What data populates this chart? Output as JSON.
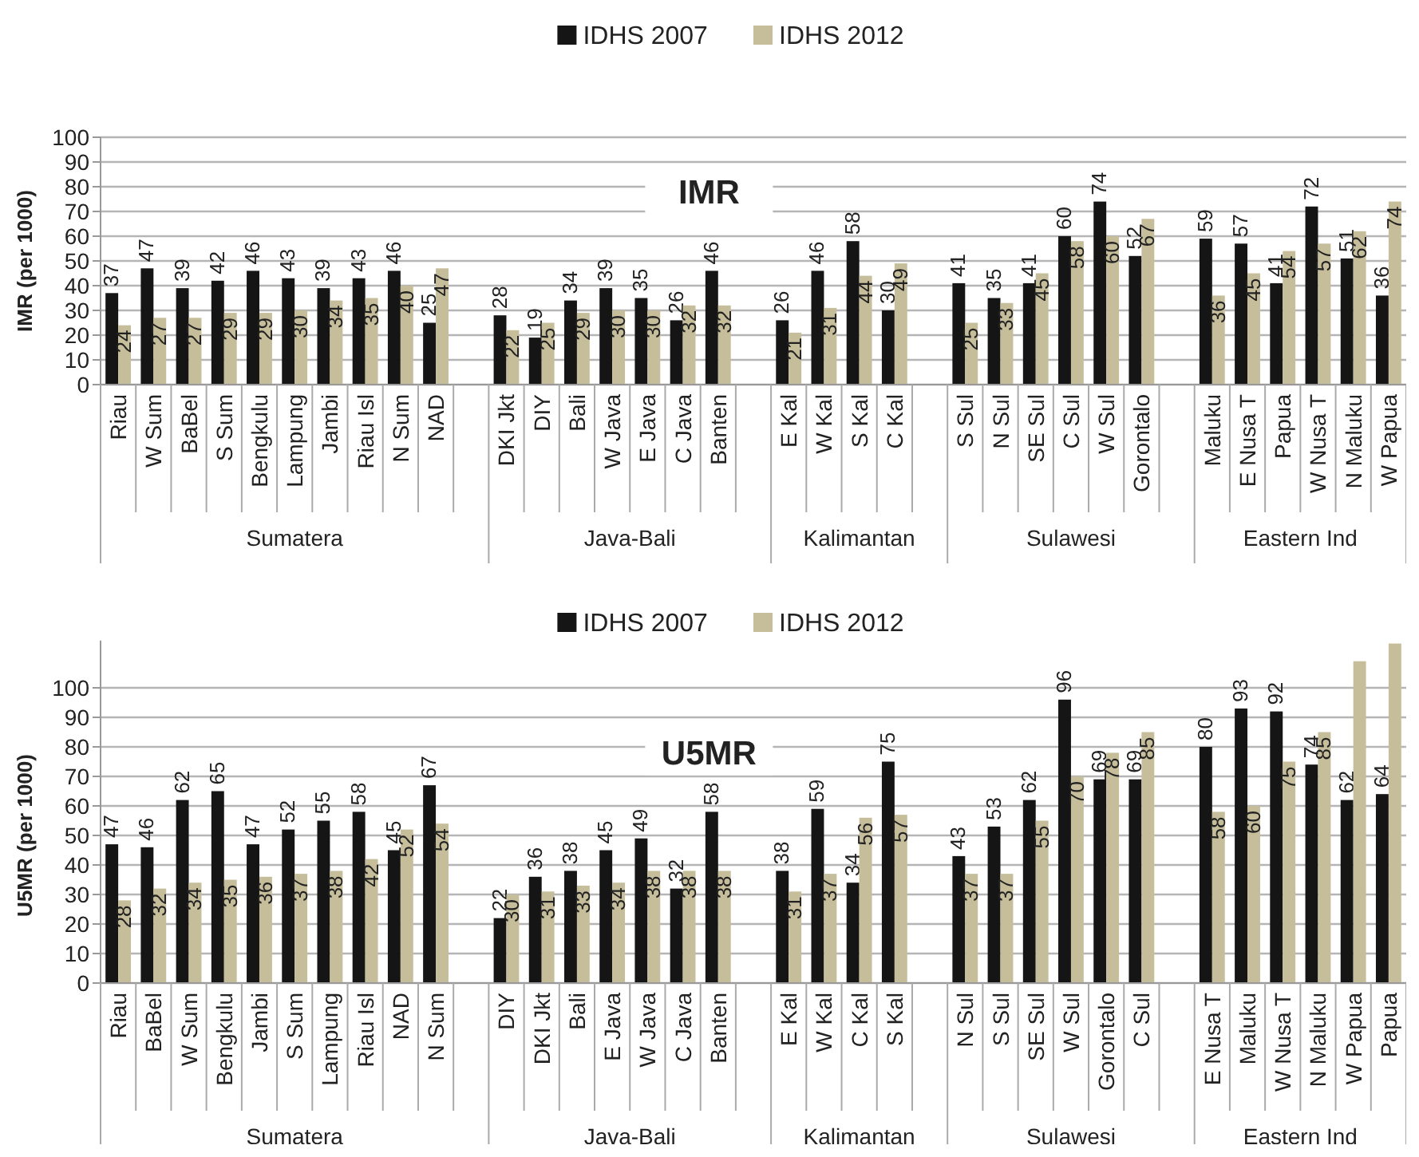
{
  "chart_data": [
    {
      "type": "bar",
      "title": "IMR",
      "ylabel": "IMR (per 1000)",
      "legend": "top",
      "grid": "y",
      "data_labels": true,
      "ylim": [
        0,
        100
      ],
      "yticks": [
        0,
        10,
        20,
        30,
        40,
        50,
        60,
        70,
        80,
        90,
        100
      ],
      "categories": [
        "Riau",
        "W Sum",
        "BaBel",
        "S Sum",
        "Bengkulu",
        "Lampung",
        "Jambi",
        "Riau Isl",
        "N Sum",
        "NAD",
        null,
        "DKI Jkt",
        "DIY",
        "Bali",
        "W Java",
        "E Java",
        "C Java",
        "Banten",
        null,
        "E Kal",
        "W Kal",
        "S Kal",
        "C Kal",
        null,
        "S Sul",
        "N Sul",
        "SE Sul",
        "C Sul",
        "W Sul",
        "Gorontalo",
        null,
        "Maluku",
        "E Nusa T",
        "Papua",
        "W Nusa T",
        "N Maluku",
        "W Papua"
      ],
      "annotations": [
        "Sumatera",
        "Java-Bali",
        "Kalimantan",
        "Sulawesi",
        "Eastern Ind"
      ],
      "series": [
        {
          "name": "IDHS 2007",
          "color": "#151515",
          "values": [
            37,
            47,
            39,
            42,
            46,
            43,
            39,
            43,
            46,
            25,
            null,
            28,
            19,
            34,
            39,
            35,
            26,
            46,
            null,
            26,
            46,
            58,
            30,
            null,
            41,
            35,
            41,
            60,
            74,
            52,
            null,
            59,
            57,
            41,
            72,
            51,
            36
          ]
        },
        {
          "name": "IDHS 2012",
          "color": "#c6be9b",
          "values": [
            24,
            27,
            27,
            29,
            29,
            30,
            34,
            35,
            40,
            47,
            null,
            22,
            25,
            29,
            30,
            30,
            32,
            32,
            null,
            21,
            31,
            44,
            49,
            null,
            25,
            33,
            45,
            58,
            60,
            67,
            null,
            36,
            45,
            54,
            57,
            62,
            74
          ]
        }
      ]
    },
    {
      "type": "bar",
      "title": "U5MR",
      "ylabel": "U5MR (per 1000)",
      "legend": "top",
      "grid": "y",
      "ylim": [
        0,
        116
      ],
      "yticks": [
        0,
        10,
        20,
        30,
        40,
        50,
        60,
        70,
        80,
        90,
        100
      ],
      "categories": [
        "Riau",
        "BaBel",
        "W Sum",
        "Bengkulu",
        "Jambi",
        "S Sum",
        "Lampung",
        "Riau Isl",
        "NAD",
        "N Sum",
        null,
        "DIY",
        "DKI Jkt",
        "Bali",
        "E Java",
        "W Java",
        "C Java",
        "Banten",
        null,
        "E Kal",
        "W Kal",
        "C Kal",
        "S Kal",
        null,
        "N Sul",
        "S Sul",
        "SE Sul",
        "W Sul",
        "Gorontalo",
        "C Sul",
        null,
        "E Nusa T",
        "Maluku",
        "W Nusa T",
        "N Maluku",
        "W Papua",
        "Papua"
      ],
      "annotations": [
        "Sumatera",
        "Java-Bali",
        "Kalimantan",
        "Sulawesi",
        "Eastern Ind"
      ],
      "series": [
        {
          "name": "IDHS 2007",
          "color": "#151515",
          "values": [
            47,
            46,
            62,
            65,
            47,
            52,
            55,
            58,
            45,
            67,
            null,
            22,
            36,
            38,
            45,
            49,
            32,
            58,
            null,
            38,
            59,
            34,
            75,
            null,
            43,
            53,
            62,
            96,
            69,
            69,
            null,
            80,
            93,
            92,
            74,
            62,
            64
          ],
          "value_labels": [
            "47",
            "46",
            "62",
            "65",
            "47",
            "52",
            "55",
            "58",
            "45",
            "67",
            null,
            "22",
            "36",
            "38",
            "45",
            "49",
            "32",
            "58",
            null,
            "38",
            "59",
            "34",
            "75",
            null,
            "43",
            "53",
            "62",
            "96",
            "69",
            "69",
            null,
            "80",
            "93",
            "92",
            "74",
            "62",
            "64"
          ]
        },
        {
          "name": "IDHS 2012",
          "color": "#c6be9b",
          "values": [
            28,
            32,
            34,
            35,
            36,
            37,
            38,
            42,
            52,
            54,
            null,
            30,
            31,
            33,
            34,
            38,
            38,
            38,
            null,
            31,
            37,
            56,
            57,
            null,
            37,
            37,
            55,
            70,
            78,
            85,
            null,
            58,
            60,
            75,
            85,
            109,
            115
          ],
          "value_labels": [
            "28",
            "32",
            "34",
            "35",
            "36",
            "37",
            "38",
            "42",
            "52",
            "54",
            null,
            "30",
            "31",
            "33",
            "34",
            "38",
            "38",
            "38",
            null,
            "31",
            "37",
            "56",
            "57",
            null,
            "37",
            "37",
            "55",
            "70",
            "78",
            "85",
            null,
            "58",
            "60",
            "75",
            "85",
            null,
            null
          ]
        }
      ]
    }
  ]
}
